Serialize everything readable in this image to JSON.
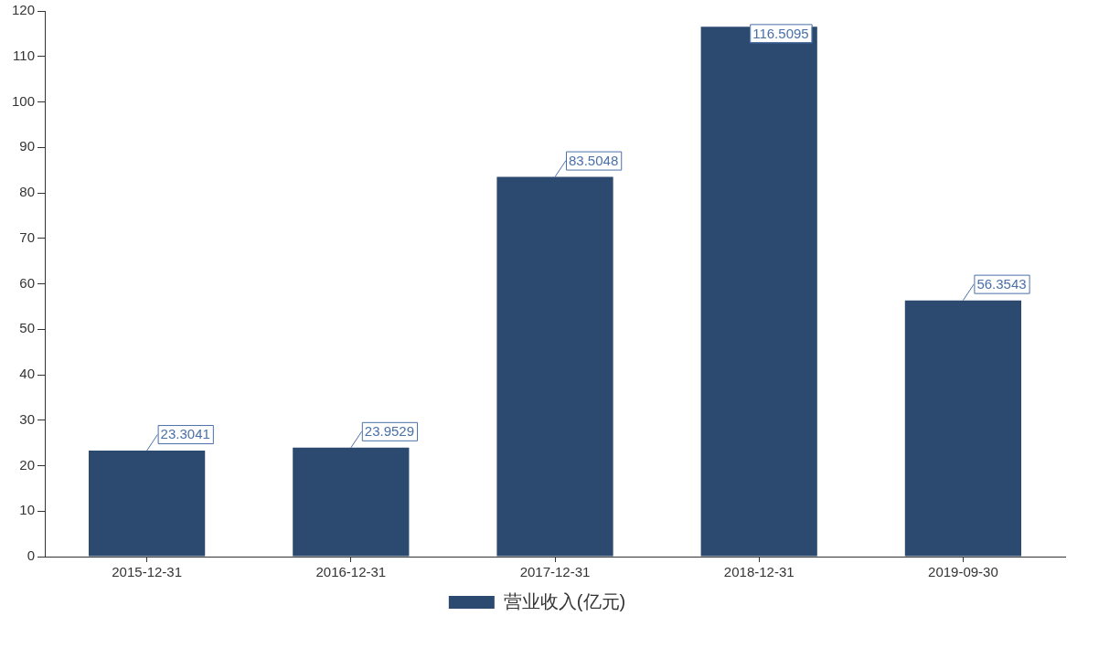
{
  "chart_data": {
    "type": "bar",
    "categories": [
      "2015-12-31",
      "2016-12-31",
      "2017-12-31",
      "2018-12-31",
      "2019-09-30"
    ],
    "series": [
      {
        "name": "营业收入(亿元)",
        "color": "#2c4a6f",
        "values": [
          23.3041,
          23.9529,
          83.5048,
          116.5095,
          56.3543
        ]
      }
    ],
    "ylim": [
      0,
      120
    ],
    "yticks": [
      0,
      10,
      20,
      30,
      40,
      50,
      60,
      70,
      80,
      90,
      100,
      110,
      120
    ],
    "data_labels": true,
    "legend": "bottom",
    "grid": false
  }
}
